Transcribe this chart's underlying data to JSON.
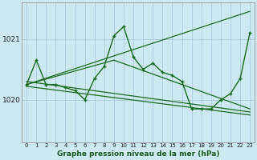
{
  "title": "Graphe pression niveau de la mer (hPa)",
  "bg_color": "#cce8f0",
  "grid_color": "#aaccdd",
  "line_color": "#1a6b1a",
  "x_labels": [
    "0",
    "1",
    "2",
    "3",
    "4",
    "5",
    "6",
    "7",
    "8",
    "9",
    "10",
    "11",
    "12",
    "13",
    "14",
    "15",
    "16",
    "17",
    "18",
    "19",
    "20",
    "21",
    "22",
    "23"
  ],
  "y_ticks": [
    1020,
    1021
  ],
  "ylim": [
    1019.3,
    1021.6
  ],
  "xlim": [
    -0.5,
    23.5
  ],
  "main_data": [
    1020.25,
    1020.65,
    1020.25,
    1020.25,
    1020.2,
    1020.15,
    1020.0,
    1020.35,
    1020.55,
    1021.05,
    1021.2,
    1020.7,
    1020.5,
    1020.6,
    1020.45,
    1020.4,
    1020.3,
    1019.85,
    1019.85,
    1019.85,
    1020.0,
    1020.1,
    1020.35,
    1021.1
  ],
  "line_up_steep": [
    [
      0,
      1020.25
    ],
    [
      23,
      1021.45
    ]
  ],
  "line_down_gentle": [
    [
      0,
      1020.3
    ],
    [
      23,
      1019.8
    ]
  ],
  "line_down_flat": [
    [
      0,
      1020.22
    ],
    [
      23,
      1019.75
    ]
  ],
  "line_flat_mid": [
    [
      0,
      1020.25
    ],
    [
      9,
      1020.65
    ],
    [
      23,
      1019.85
    ]
  ]
}
